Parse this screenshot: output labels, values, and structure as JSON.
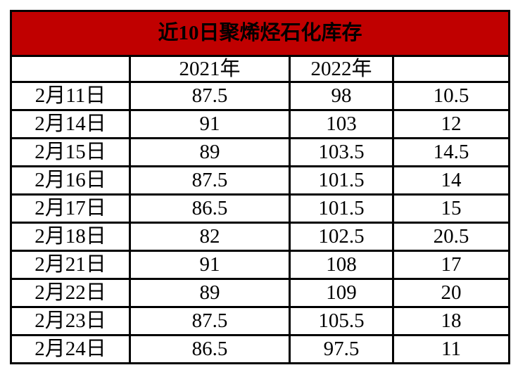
{
  "colors": {
    "page_bg": "#ffffff",
    "title_bg": "#c00000",
    "title_text": "#ffffff",
    "border": "#000000",
    "cell_bg": "#ffffff",
    "cell_text": "#000000"
  },
  "chart_data": {
    "type": "table",
    "title": "近10日聚烯烃石化库存",
    "columns": [
      "",
      "2021年",
      "2022年",
      ""
    ],
    "rows": [
      [
        "2月11日",
        "87.5",
        "98",
        "10.5"
      ],
      [
        "2月14日",
        "91",
        "103",
        "12"
      ],
      [
        "2月15日",
        "89",
        "103.5",
        "14.5"
      ],
      [
        "2月16日",
        "87.5",
        "101.5",
        "14"
      ],
      [
        "2月17日",
        "86.5",
        "101.5",
        "15"
      ],
      [
        "2月18日",
        "82",
        "102.5",
        "20.5"
      ],
      [
        "2月21日",
        "91",
        "108",
        "17"
      ],
      [
        "2月22日",
        "89",
        "109",
        "20"
      ],
      [
        "2月23日",
        "87.5",
        "105.5",
        "18"
      ],
      [
        "2月24日",
        "86.5",
        "97.5",
        "11"
      ]
    ],
    "layout": {
      "grid": "all-borders",
      "title_position": "top-merged-row",
      "value_alignment": "center"
    }
  }
}
